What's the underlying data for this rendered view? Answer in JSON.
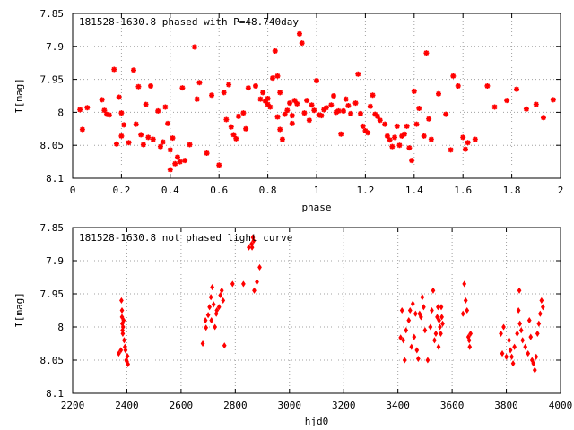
{
  "chart_data": [
    {
      "type": "scatter",
      "title": "181528-1630.8 phased with P=48.740day",
      "xlabel": "phase",
      "ylabel": "I[mag]",
      "xlim": [
        0,
        2
      ],
      "ylim": [
        8.1,
        7.85
      ],
      "y_inverted": true,
      "grid": true,
      "marker_color": "#ff0000",
      "marker": "cross-star",
      "x_ticks": [
        0,
        0.2,
        0.4,
        0.6,
        0.8,
        1,
        1.2,
        1.4,
        1.6,
        1.8,
        2
      ],
      "x_tick_labels": [
        "0",
        "0.2",
        "0.4",
        "0.6",
        "0.8",
        "1",
        "1.2",
        "1.4",
        "1.6",
        "1.8",
        "2"
      ],
      "y_ticks": [
        7.85,
        7.9,
        7.95,
        8,
        8.05,
        8.1
      ],
      "y_tick_labels": [
        "7.85",
        "7.9",
        "7.95",
        "8",
        "8.05",
        "8.1"
      ],
      "points": [
        [
          0.03,
          7.996
        ],
        [
          0.04,
          8.026
        ],
        [
          0.06,
          7.993
        ],
        [
          0.12,
          7.981
        ],
        [
          0.13,
          7.997
        ],
        [
          0.14,
          8.003
        ],
        [
          0.15,
          8.004
        ],
        [
          0.17,
          7.935
        ],
        [
          0.18,
          8.048
        ],
        [
          0.19,
          7.977
        ],
        [
          0.2,
          8.001
        ],
        [
          0.2,
          8.036
        ],
        [
          0.21,
          8.019
        ],
        [
          0.23,
          8.046
        ],
        [
          0.25,
          7.936
        ],
        [
          0.26,
          8.018
        ],
        [
          0.27,
          7.961
        ],
        [
          0.28,
          8.034
        ],
        [
          0.29,
          8.049
        ],
        [
          0.3,
          7.988
        ],
        [
          0.31,
          8.038
        ],
        [
          0.32,
          7.96
        ],
        [
          0.33,
          8.041
        ],
        [
          0.35,
          7.998
        ],
        [
          0.36,
          8.052
        ],
        [
          0.37,
          8.045
        ],
        [
          0.38,
          7.992
        ],
        [
          0.39,
          8.017
        ],
        [
          0.4,
          8.057
        ],
        [
          0.41,
          8.039
        ],
        [
          0.4,
          8.087
        ],
        [
          0.42,
          8.078
        ],
        [
          0.43,
          8.068
        ],
        [
          0.44,
          8.075
        ],
        [
          0.45,
          7.963
        ],
        [
          0.46,
          8.073
        ],
        [
          0.48,
          8.049
        ],
        [
          0.5,
          7.901
        ],
        [
          0.51,
          7.98
        ],
        [
          0.52,
          7.955
        ],
        [
          0.55,
          8.062
        ],
        [
          0.57,
          7.974
        ],
        [
          0.6,
          8.08
        ],
        [
          0.62,
          7.97
        ],
        [
          0.63,
          8.011
        ],
        [
          0.64,
          7.958
        ],
        [
          0.65,
          8.022
        ],
        [
          0.66,
          8.034
        ],
        [
          0.67,
          8.04
        ],
        [
          0.68,
          8.006
        ],
        [
          0.7,
          8.001
        ],
        [
          0.71,
          8.025
        ],
        [
          0.72,
          7.963
        ],
        [
          0.75,
          7.96
        ],
        [
          0.77,
          7.98
        ],
        [
          0.78,
          7.97
        ],
        [
          0.79,
          7.983
        ],
        [
          0.8,
          7.988
        ],
        [
          0.8,
          7.979
        ],
        [
          0.81,
          7.992
        ],
        [
          0.82,
          7.948
        ],
        [
          0.83,
          7.907
        ],
        [
          0.84,
          7.945
        ],
        [
          0.84,
          8.007
        ],
        [
          0.85,
          8.026
        ],
        [
          0.85,
          7.97
        ],
        [
          0.86,
          8.041
        ],
        [
          0.87,
          8.003
        ],
        [
          0.88,
          7.997
        ],
        [
          0.89,
          7.986
        ],
        [
          0.9,
          8.005
        ],
        [
          0.9,
          8.017
        ],
        [
          0.91,
          7.982
        ],
        [
          0.92,
          7.987
        ],
        [
          0.93,
          7.881
        ],
        [
          0.94,
          7.895
        ],
        [
          0.95,
          8.001
        ],
        [
          0.96,
          7.982
        ],
        [
          0.97,
          8.012
        ],
        [
          0.98,
          7.989
        ],
        [
          0.99,
          7.997
        ],
        [
          1,
          7.952
        ],
        [
          1.01,
          8.004
        ],
        [
          1.02,
          8.005
        ],
        [
          1.03,
          7.996
        ],
        [
          1.04,
          7.993
        ],
        [
          1.06,
          7.989
        ],
        [
          1.07,
          7.975
        ],
        [
          1.08,
          8.0
        ],
        [
          1.09,
          7.998
        ],
        [
          1.1,
          8.033
        ],
        [
          1.11,
          7.998
        ],
        [
          1.12,
          7.98
        ],
        [
          1.13,
          7.99
        ],
        [
          1.14,
          8.002
        ],
        [
          1.16,
          7.986
        ],
        [
          1.17,
          7.942
        ],
        [
          1.18,
          8.002
        ],
        [
          1.19,
          8.021
        ],
        [
          1.2,
          8.028
        ],
        [
          1.21,
          8.031
        ],
        [
          1.22,
          7.991
        ],
        [
          1.23,
          7.974
        ],
        [
          1.24,
          8.003
        ],
        [
          1.25,
          8.006
        ],
        [
          1.26,
          8.012
        ],
        [
          1.28,
          8.018
        ],
        [
          1.29,
          8.036
        ],
        [
          1.3,
          8.042
        ],
        [
          1.31,
          8.052
        ],
        [
          1.32,
          8.038
        ],
        [
          1.33,
          8.021
        ],
        [
          1.34,
          8.05
        ],
        [
          1.35,
          8.036
        ],
        [
          1.36,
          8.033
        ],
        [
          1.37,
          8.021
        ],
        [
          1.38,
          8.054
        ],
        [
          1.39,
          8.073
        ],
        [
          1.4,
          7.968
        ],
        [
          1.41,
          8.018
        ],
        [
          1.42,
          7.994
        ],
        [
          1.44,
          8.036
        ],
        [
          1.45,
          7.91
        ],
        [
          1.46,
          8.01
        ],
        [
          1.47,
          8.041
        ],
        [
          1.5,
          7.972
        ],
        [
          1.53,
          8.003
        ],
        [
          1.55,
          8.057
        ],
        [
          1.56,
          7.945
        ],
        [
          1.58,
          7.96
        ],
        [
          1.6,
          8.038
        ],
        [
          1.61,
          8.056
        ],
        [
          1.62,
          8.046
        ],
        [
          1.65,
          8.041
        ],
        [
          1.7,
          7.96
        ],
        [
          1.73,
          7.992
        ],
        [
          1.78,
          7.982
        ],
        [
          1.82,
          7.965
        ],
        [
          1.86,
          7.995
        ],
        [
          1.9,
          7.988
        ],
        [
          1.93,
          8.008
        ],
        [
          1.97,
          7.981
        ]
      ]
    },
    {
      "type": "scatter",
      "title": "181528-1630.8 not phased light curve",
      "xlabel": "hjd0",
      "ylabel": "I[mag]",
      "xlim": [
        2200,
        4000
      ],
      "ylim": [
        8.1,
        7.85
      ],
      "y_inverted": true,
      "grid": true,
      "marker_color": "#ff0000",
      "marker": "diamond",
      "x_ticks": [
        2200,
        2400,
        2600,
        2800,
        3000,
        3200,
        3400,
        3600,
        3800,
        4000
      ],
      "x_tick_labels": [
        "2200",
        "2400",
        "2600",
        "2800",
        "3000",
        "3200",
        "3400",
        "3600",
        "3800",
        "4000"
      ],
      "y_ticks": [
        7.85,
        7.9,
        7.95,
        8,
        8.05,
        8.1
      ],
      "y_tick_labels": [
        "7.85",
        "7.9",
        "7.95",
        "8",
        "8.05",
        "8.1"
      ],
      "points": [
        [
          2370,
          8.04
        ],
        [
          2378,
          8.035
        ],
        [
          2380,
          7.96
        ],
        [
          2382,
          7.975
        ],
        [
          2382,
          7.985
        ],
        [
          2383,
          7.995
        ],
        [
          2384,
          8.005
        ],
        [
          2385,
          8.01
        ],
        [
          2386,
          8.0
        ],
        [
          2388,
          7.99
        ],
        [
          2390,
          8.02
        ],
        [
          2393,
          8.03
        ],
        [
          2395,
          8.035
        ],
        [
          2398,
          8.05
        ],
        [
          2400,
          8.052
        ],
        [
          2402,
          8.044
        ],
        [
          2404,
          8.056
        ],
        [
          2680,
          8.025
        ],
        [
          2690,
          7.99
        ],
        [
          2692,
          8.001
        ],
        [
          2700,
          7.982
        ],
        [
          2705,
          7.97
        ],
        [
          2710,
          7.955
        ],
        [
          2712,
          7.99
        ],
        [
          2715,
          7.94
        ],
        [
          2720,
          7.966
        ],
        [
          2725,
          8.0
        ],
        [
          2730,
          7.98
        ],
        [
          2732,
          7.975
        ],
        [
          2740,
          7.97
        ],
        [
          2745,
          7.952
        ],
        [
          2750,
          7.945
        ],
        [
          2755,
          7.96
        ],
        [
          2760,
          8.028
        ],
        [
          2790,
          7.935
        ],
        [
          2830,
          7.935
        ],
        [
          2850,
          7.88
        ],
        [
          2860,
          7.875
        ],
        [
          2862,
          7.88
        ],
        [
          2865,
          7.865
        ],
        [
          2868,
          7.87
        ],
        [
          2870,
          7.945
        ],
        [
          2880,
          7.932
        ],
        [
          2890,
          7.91
        ],
        [
          3410,
          8.016
        ],
        [
          3415,
          7.975
        ],
        [
          3420,
          8.02
        ],
        [
          3425,
          8.05
        ],
        [
          3430,
          8.005
        ],
        [
          3440,
          7.99
        ],
        [
          3445,
          7.975
        ],
        [
          3450,
          8.03
        ],
        [
          3455,
          7.965
        ],
        [
          3460,
          8.015
        ],
        [
          3465,
          7.98
        ],
        [
          3470,
          8.035
        ],
        [
          3475,
          8.048
        ],
        [
          3480,
          7.98
        ],
        [
          3485,
          7.985
        ],
        [
          3490,
          7.955
        ],
        [
          3495,
          7.97
        ],
        [
          3500,
          8.005
        ],
        [
          3510,
          8.05
        ],
        [
          3520,
          8.0
        ],
        [
          3525,
          7.975
        ],
        [
          3530,
          7.945
        ],
        [
          3535,
          8.02
        ],
        [
          3540,
          8.01
        ],
        [
          3545,
          7.985
        ],
        [
          3548,
          7.97
        ],
        [
          3550,
          8.03
        ],
        [
          3552,
          7.99
        ],
        [
          3555,
          8.0
        ],
        [
          3558,
          8.01
        ],
        [
          3560,
          7.97
        ],
        [
          3562,
          7.985
        ],
        [
          3565,
          7.995
        ],
        [
          3640,
          7.98
        ],
        [
          3645,
          7.935
        ],
        [
          3650,
          7.96
        ],
        [
          3655,
          7.975
        ],
        [
          3660,
          8.015
        ],
        [
          3663,
          8.02
        ],
        [
          3665,
          8.03
        ],
        [
          3668,
          8.01
        ],
        [
          3780,
          8.01
        ],
        [
          3785,
          8.04
        ],
        [
          3790,
          8.0
        ],
        [
          3800,
          8.045
        ],
        [
          3810,
          8.02
        ],
        [
          3815,
          8.035
        ],
        [
          3820,
          8.045
        ],
        [
          3825,
          8.055
        ],
        [
          3830,
          8.03
        ],
        [
          3840,
          8.01
        ],
        [
          3845,
          7.975
        ],
        [
          3848,
          7.945
        ],
        [
          3850,
          7.995
        ],
        [
          3855,
          8.005
        ],
        [
          3860,
          8.02
        ],
        [
          3870,
          8.03
        ],
        [
          3880,
          8.04
        ],
        [
          3885,
          7.99
        ],
        [
          3890,
          8.015
        ],
        [
          3895,
          8.05
        ],
        [
          3900,
          8.055
        ],
        [
          3905,
          8.065
        ],
        [
          3910,
          8.045
        ],
        [
          3915,
          8.01
        ],
        [
          3920,
          7.995
        ],
        [
          3925,
          7.98
        ],
        [
          3930,
          7.96
        ],
        [
          3935,
          7.97
        ]
      ]
    }
  ]
}
